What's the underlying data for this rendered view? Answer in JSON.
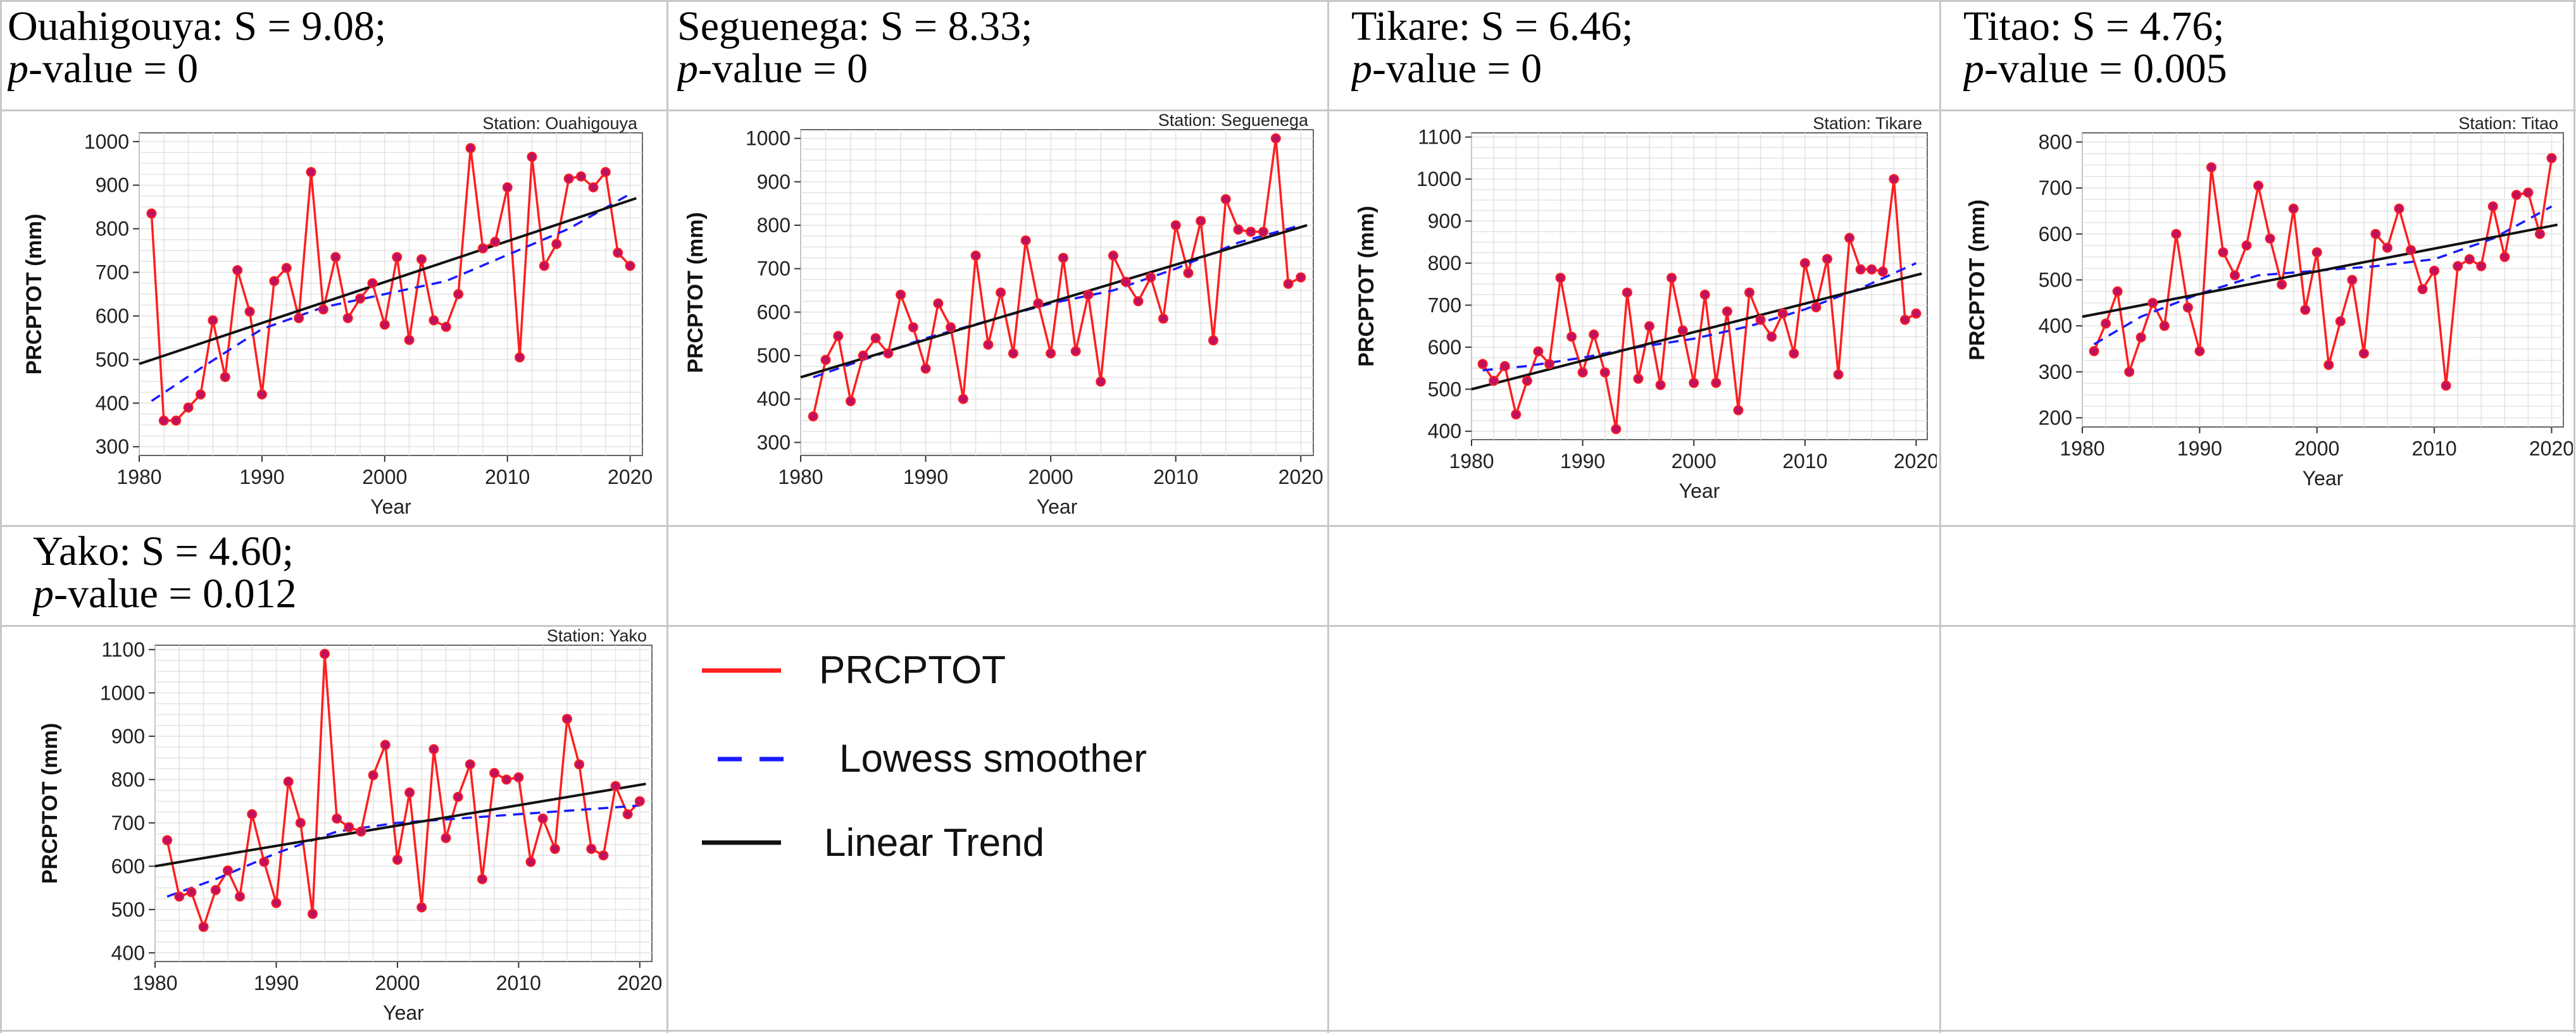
{
  "legend": {
    "prcptot": "PRCPTOT",
    "lowess": "Lowess smoother",
    "linear": "Linear Trend"
  },
  "colors": {
    "series": "#ff1e1e",
    "marker": "#c01060",
    "lowess": "#1a1aff",
    "trend": "#111111",
    "grid": "#e3e3e3"
  },
  "chart_data": [
    {
      "type": "line",
      "station": "Ouahigouya",
      "title_prefix": "Ouahigouya: S = 9.08;",
      "title_p": "p",
      "title_suffix": "-value = 0",
      "inner_title": "Station: Ouahigouya",
      "xlabel": "Year",
      "ylabel": "PRCPTOT (mm)",
      "xlim": [
        1980,
        2021
      ],
      "ylim": [
        280,
        1020
      ],
      "xticks": [
        1980,
        1990,
        2000,
        2010,
        2020
      ],
      "yticks": [
        300,
        400,
        500,
        600,
        700,
        800,
        900,
        1000
      ],
      "x": [
        1981,
        1982,
        1983,
        1984,
        1985,
        1986,
        1987,
        1988,
        1989,
        1990,
        1991,
        1992,
        1993,
        1994,
        1995,
        1996,
        1997,
        1998,
        1999,
        2000,
        2001,
        2002,
        2003,
        2004,
        2005,
        2006,
        2007,
        2008,
        2009,
        2010,
        2011,
        2012,
        2013,
        2014,
        2015,
        2016,
        2017,
        2018,
        2019,
        2020
      ],
      "values": [
        835,
        360,
        360,
        390,
        420,
        590,
        460,
        705,
        610,
        420,
        680,
        710,
        595,
        930,
        615,
        735,
        595,
        640,
        675,
        580,
        735,
        545,
        730,
        590,
        575,
        650,
        985,
        755,
        770,
        895,
        505,
        965,
        715,
        765,
        915,
        920,
        895,
        930,
        745,
        715
      ],
      "trend": [
        490,
        870
      ],
      "lowess": [
        [
          1981,
          405
        ],
        [
          1985,
          480
        ],
        [
          1990,
          570
        ],
        [
          1995,
          620
        ],
        [
          2000,
          650
        ],
        [
          2005,
          680
        ],
        [
          2010,
          740
        ],
        [
          2015,
          800
        ],
        [
          2020,
          880
        ]
      ]
    },
    {
      "type": "line",
      "station": "Seguenega",
      "title_prefix": "Seguenega: S = 8.33;",
      "title_p": "p",
      "title_suffix": "-value = 0",
      "inner_title": "Station: Seguenega",
      "xlabel": "Year",
      "ylabel": "PRCPTOT (mm)",
      "xlim": [
        1980,
        2021
      ],
      "ylim": [
        270,
        1020
      ],
      "xticks": [
        1980,
        1990,
        2000,
        2010,
        2020
      ],
      "yticks": [
        300,
        400,
        500,
        600,
        700,
        800,
        900,
        1000
      ],
      "x": [
        1981,
        1982,
        1983,
        1984,
        1985,
        1986,
        1987,
        1988,
        1989,
        1990,
        1991,
        1992,
        1993,
        1994,
        1995,
        1996,
        1997,
        1998,
        1999,
        2000,
        2001,
        2002,
        2003,
        2004,
        2005,
        2006,
        2007,
        2008,
        2009,
        2010,
        2011,
        2012,
        2013,
        2014,
        2015,
        2016,
        2017,
        2018,
        2019,
        2020
      ],
      "values": [
        360,
        490,
        545,
        395,
        500,
        540,
        505,
        640,
        565,
        470,
        620,
        565,
        400,
        730,
        525,
        645,
        505,
        765,
        620,
        505,
        725,
        510,
        640,
        440,
        730,
        670,
        625,
        680,
        585,
        800,
        690,
        810,
        535,
        860,
        790,
        785,
        785,
        1000,
        665,
        680
      ],
      "trend": [
        450,
        800
      ],
      "lowess": [
        [
          1981,
          450
        ],
        [
          1985,
          490
        ],
        [
          1990,
          540
        ],
        [
          1995,
          580
        ],
        [
          2000,
          620
        ],
        [
          2005,
          650
        ],
        [
          2010,
          700
        ],
        [
          2015,
          760
        ],
        [
          2020,
          800
        ]
      ]
    },
    {
      "type": "line",
      "station": "Tikare",
      "title_prefix": "Tikare: S = 6.46;",
      "title_p": "p",
      "title_suffix": "-value = 0",
      "inner_title": "Station: Tikare",
      "xlabel": "Year",
      "ylabel": "PRCPTOT (mm)",
      "xlim": [
        1980,
        2021
      ],
      "ylim": [
        380,
        1110
      ],
      "xticks": [
        1980,
        1990,
        2000,
        2010,
        2020
      ],
      "yticks": [
        400,
        500,
        600,
        700,
        800,
        900,
        1000,
        1100
      ],
      "x": [
        1981,
        1982,
        1983,
        1984,
        1985,
        1986,
        1987,
        1988,
        1989,
        1990,
        1991,
        1992,
        1993,
        1994,
        1995,
        1996,
        1997,
        1998,
        1999,
        2000,
        2001,
        2002,
        2003,
        2004,
        2005,
        2006,
        2007,
        2008,
        2009,
        2010,
        2011,
        2012,
        2013,
        2014,
        2015,
        2016,
        2017,
        2018,
        2019,
        2020
      ],
      "values": [
        560,
        520,
        555,
        440,
        520,
        590,
        560,
        765,
        625,
        540,
        630,
        540,
        405,
        730,
        525,
        650,
        510,
        765,
        640,
        515,
        725,
        515,
        685,
        450,
        730,
        665,
        625,
        680,
        585,
        800,
        695,
        810,
        535,
        860,
        785,
        785,
        780,
        1000,
        665,
        680
      ],
      "trend": [
        500,
        775
      ],
      "lowess": [
        [
          1981,
          545
        ],
        [
          1985,
          555
        ],
        [
          1990,
          575
        ],
        [
          1995,
          600
        ],
        [
          2000,
          620
        ],
        [
          2005,
          650
        ],
        [
          2010,
          690
        ],
        [
          2015,
          740
        ],
        [
          2020,
          800
        ]
      ]
    },
    {
      "type": "line",
      "station": "Titao",
      "title_prefix": "Titao: S = 4.76;",
      "title_p": "p",
      "title_suffix": "-value = 0.005",
      "inner_title": "Station: Titao",
      "xlabel": "Year",
      "ylabel": "PRCPTOT (mm)",
      "xlim": [
        1980,
        2021
      ],
      "ylim": [
        180,
        820
      ],
      "xticks": [
        1980,
        1990,
        2000,
        2010,
        2020
      ],
      "yticks": [
        200,
        300,
        400,
        500,
        600,
        700,
        800
      ],
      "x": [
        1981,
        1982,
        1983,
        1984,
        1985,
        1986,
        1987,
        1988,
        1989,
        1990,
        1991,
        1992,
        1993,
        1994,
        1995,
        1996,
        1997,
        1998,
        1999,
        2000,
        2001,
        2002,
        2003,
        2004,
        2005,
        2006,
        2007,
        2008,
        2009,
        2010,
        2011,
        2012,
        2013,
        2014,
        2015,
        2016,
        2017,
        2018,
        2019,
        2020
      ],
      "values": [
        345,
        405,
        475,
        300,
        375,
        450,
        400,
        600,
        440,
        345,
        745,
        560,
        510,
        575,
        705,
        590,
        490,
        655,
        435,
        560,
        315,
        410,
        500,
        340,
        600,
        570,
        655,
        565,
        480,
        520,
        270,
        530,
        545,
        530,
        660,
        550,
        685,
        690,
        600,
        765
      ],
      "trend": [
        420,
        620
      ],
      "lowess": [
        [
          1981,
          360
        ],
        [
          1985,
          420
        ],
        [
          1990,
          470
        ],
        [
          1995,
          510
        ],
        [
          2000,
          520
        ],
        [
          2005,
          530
        ],
        [
          2010,
          545
        ],
        [
          2015,
          590
        ],
        [
          2020,
          660
        ]
      ]
    },
    {
      "type": "line",
      "station": "Yako",
      "title_prefix": "Yako: S = 4.60;",
      "title_p": "p",
      "title_suffix": "-value = 0.012",
      "inner_title": "Station: Yako",
      "xlabel": "Year",
      "ylabel": "PRCPTOT (mm)",
      "xlim": [
        1980,
        2021
      ],
      "ylim": [
        380,
        1110
      ],
      "xticks": [
        1980,
        1990,
        2000,
        2010,
        2020
      ],
      "yticks": [
        400,
        500,
        600,
        700,
        800,
        900,
        1000,
        1100
      ],
      "x": [
        1981,
        1982,
        1983,
        1984,
        1985,
        1986,
        1987,
        1988,
        1989,
        1990,
        1991,
        1992,
        1993,
        1994,
        1995,
        1996,
        1997,
        1998,
        1999,
        2000,
        2001,
        2002,
        2003,
        2004,
        2005,
        2006,
        2007,
        2008,
        2009,
        2010,
        2011,
        2012,
        2013,
        2014,
        2015,
        2016,
        2017,
        2018,
        2019,
        2020
      ],
      "values": [
        660,
        530,
        540,
        460,
        545,
        590,
        530,
        720,
        610,
        515,
        795,
        700,
        490,
        1090,
        710,
        690,
        680,
        810,
        880,
        615,
        770,
        505,
        870,
        665,
        760,
        835,
        570,
        815,
        800,
        805,
        610,
        710,
        640,
        940,
        835,
        640,
        625,
        785,
        720,
        750
      ],
      "trend": [
        600,
        790
      ],
      "lowess": [
        [
          1981,
          530
        ],
        [
          1985,
          570
        ],
        [
          1990,
          630
        ],
        [
          1995,
          680
        ],
        [
          2000,
          700
        ],
        [
          2005,
          710
        ],
        [
          2010,
          720
        ],
        [
          2015,
          730
        ],
        [
          2020,
          740
        ]
      ]
    }
  ]
}
